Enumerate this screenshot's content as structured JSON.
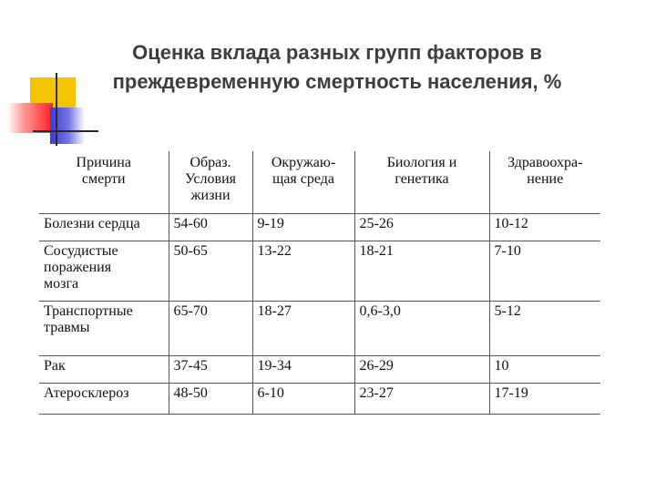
{
  "title": {
    "line1": "Оценка вклада разных групп факторов в",
    "line2": "преждевременную смертность населения, %"
  },
  "table": {
    "headers": [
      "Причина\nсмерти",
      "Образ.\nУсловия\nжизни",
      "Окружаю-\nщая среда",
      "Биология и\nгенетика",
      "Здравоохра-\nнение"
    ],
    "rows": [
      [
        "Болезни сердца",
        "54-60",
        "9-19",
        "25-26",
        "10-12"
      ],
      [
        "Сосудистые\nпоражения\nмозга",
        "50-65",
        "13-22",
        "18-21",
        "7-10"
      ],
      [
        "Транспортные\nтравмы",
        "65-70",
        "18-27",
        "0,6-3,0",
        "5-12"
      ],
      [
        "Рак",
        "37-45",
        "19-34",
        "26-29",
        "10"
      ],
      [
        "Атеросклероз",
        "48-50",
        "6-10",
        "23-27",
        "17-19"
      ]
    ]
  }
}
